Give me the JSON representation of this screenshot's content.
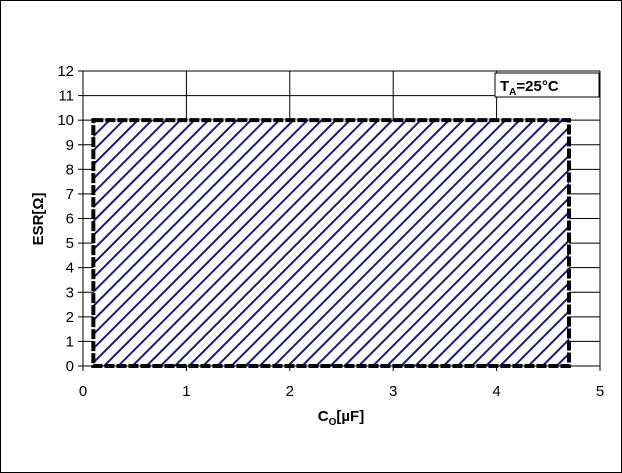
{
  "chart_data": {
    "type": "area",
    "title": "",
    "xlabel": {
      "base": "C",
      "sub": "O",
      "unit": "[µF]"
    },
    "ylabel": "ESR[Ω]",
    "xlim": [
      0,
      5
    ],
    "ylim": [
      0,
      12
    ],
    "x_ticks": [
      0,
      1,
      2,
      3,
      4,
      5
    ],
    "y_ticks": [
      0,
      1,
      2,
      3,
      4,
      5,
      6,
      7,
      8,
      9,
      10,
      11,
      12
    ],
    "grid": true,
    "stable_region": {
      "x": [
        0.1,
        4.7
      ],
      "y": [
        0,
        10
      ],
      "fill": "hatched",
      "color": "#1a1a80"
    },
    "annotation": {
      "base": "T",
      "sub": "A",
      "rest": "=25°C"
    }
  }
}
